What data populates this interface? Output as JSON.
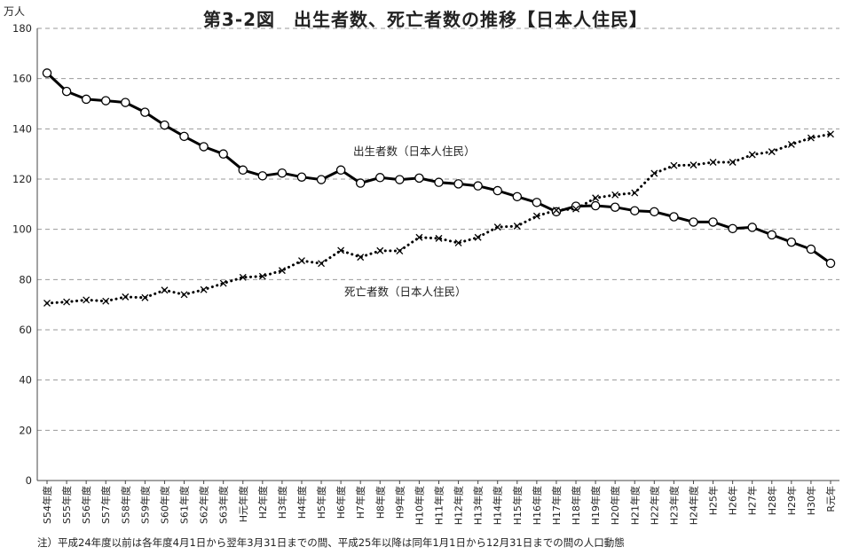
{
  "unit": "万人",
  "footnote": "注）平成24年度以前は各年度4月1日から翌年3月31日までの間、平成25年以降は同年1月1日から12月31日までの間の人口動態",
  "chart_data": {
    "type": "line",
    "title": "第3-2図　出生者数、死亡者数の推移【日本人住民】",
    "ylabel": "万人",
    "ylim": [
      0,
      180
    ],
    "yticks": [
      0,
      20,
      40,
      60,
      80,
      100,
      120,
      140,
      160,
      180
    ],
    "grid": true,
    "categories": [
      "S54年度",
      "S55年度",
      "S56年度",
      "S57年度",
      "S58年度",
      "S59年度",
      "S60年度",
      "S61年度",
      "S62年度",
      "S63年度",
      "H元年度",
      "H2年度",
      "H3年度",
      "H4年度",
      "H5年度",
      "H6年度",
      "H7年度",
      "H8年度",
      "H9年度",
      "H10年度",
      "H11年度",
      "H12年度",
      "H13年度",
      "H14年度",
      "H15年度",
      "H16年度",
      "H17年度",
      "H18年度",
      "H19年度",
      "H20年度",
      "H21年度",
      "H22年度",
      "H23年度",
      "H24年度",
      "H25年",
      "H26年",
      "H27年",
      "H28年",
      "H29年",
      "H30年",
      "R元年"
    ],
    "series": [
      {
        "name": "出生者数（日本人住民）",
        "color": "#000000",
        "style": "solid",
        "marker": "circle",
        "values": [
          162.2,
          154.9,
          151.8,
          151.2,
          150.5,
          146.6,
          141.5,
          137.0,
          132.9,
          130.0,
          123.6,
          121.3,
          122.4,
          120.8,
          119.8,
          123.6,
          118.4,
          120.6,
          119.8,
          120.4,
          118.7,
          118.1,
          117.3,
          115.4,
          113.0,
          110.7,
          107.0,
          109.2,
          109.4,
          108.8,
          107.4,
          107.0,
          105.0,
          102.9,
          102.9,
          100.3,
          100.8,
          97.8,
          94.9,
          92.1,
          86.5
        ]
      },
      {
        "name": "死亡者数（日本人住民）",
        "color": "#000000",
        "style": "dotted",
        "marker": "x",
        "values": [
          70.6,
          71.1,
          71.9,
          71.4,
          73.1,
          72.8,
          75.8,
          74.0,
          76.0,
          78.5,
          80.9,
          81.3,
          83.6,
          87.5,
          86.4,
          91.6,
          88.9,
          91.5,
          91.4,
          96.8,
          96.4,
          94.6,
          96.8,
          100.9,
          101.3,
          105.3,
          107.6,
          108.1,
          112.5,
          113.7,
          114.5,
          122.3,
          125.4,
          125.6,
          126.7,
          126.7,
          129.7,
          130.9,
          133.8,
          136.4,
          137.9
        ]
      }
    ]
  }
}
